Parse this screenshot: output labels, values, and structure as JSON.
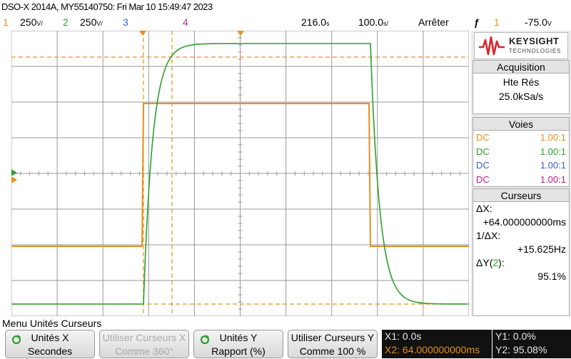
{
  "title": "DSO-X 2014A, MY55140750: Fri Mar 10 15:49:47 2023",
  "status": {
    "ch1_num": "1",
    "ch1_scale": "250",
    "ch2_num": "2",
    "ch2_scale": "250",
    "ch3_num": "3",
    "ch4_num": "4",
    "timebase_pos": "216.0",
    "timebase_scale": "100.0",
    "run_state": "Arrêter",
    "trigger_channel": "1",
    "trigger_level": "-75.0"
  },
  "brand": {
    "name": "KEYSIGHT",
    "sub": "TECHNOLOGIES",
    "logo_color": "#d7262b"
  },
  "acquisition": {
    "heading": "Acquisition",
    "mode": "Hte Rés",
    "rate": "25.0kSa/s"
  },
  "voies": {
    "heading": "Voies",
    "rows": [
      {
        "coupling": "DC",
        "probe": "1.00:1",
        "color": "#e8901a"
      },
      {
        "coupling": "DC",
        "probe": "1.00:1",
        "color": "#2ca02c"
      },
      {
        "coupling": "DC",
        "probe": "1.00:1",
        "color": "#3a5fd4"
      },
      {
        "coupling": "DC",
        "probe": "1.00:1",
        "color": "#c2188b"
      }
    ]
  },
  "cursors": {
    "heading": "Curseurs",
    "dx_label": "ΔX:",
    "dx_value": "+64.000000000ms",
    "inv_label": "1/ΔX:",
    "inv_value": "+15.625Hz",
    "dy_label_prefix": "ΔY(",
    "dy_channel": "2",
    "dy_label_suffix": "):",
    "dy_value": "95.1%"
  },
  "menu": {
    "title": "Menu Unités Curseurs",
    "x_units_label": "Unités X",
    "x_units_value": "Secondes",
    "use_cursors_x_label": "Utiliser Curseurs X",
    "use_cursors_x_value": "Comme 360°",
    "y_units_label": "Unités Y",
    "y_units_value": "Rapport (%)",
    "use_cursors_y_label": "Utiliser Curseurs Y",
    "use_cursors_y_value": "Comme 100 %"
  },
  "readouts": {
    "x1": "X1: 0.0s",
    "x2": "X2: 64.000000000ms",
    "y1": "Y1: 0.0%",
    "y2": "Y2: 95.08%"
  },
  "colors": {
    "ch1": "#e8901a",
    "ch2": "#2ca02c",
    "ch3": "#3a5fd4",
    "ch4": "#b22cb2",
    "grid": "#9a9a9a",
    "screen_bg": "#ffffff"
  }
}
